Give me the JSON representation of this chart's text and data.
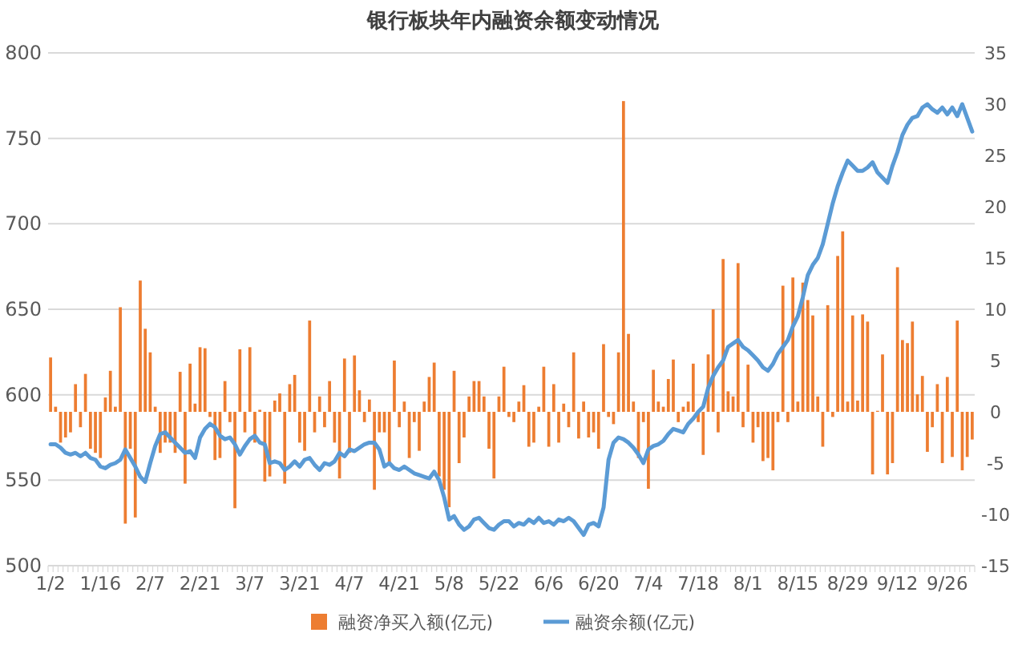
{
  "chart_data": {
    "type": "bar",
    "title": "银行板块年内融资余额变动情况",
    "categories": [
      "1/2",
      null,
      null,
      null,
      null,
      null,
      null,
      null,
      null,
      null,
      "1/16",
      null,
      null,
      null,
      null,
      null,
      null,
      null,
      null,
      null,
      "2/7",
      null,
      null,
      null,
      null,
      null,
      null,
      null,
      null,
      null,
      "2/21",
      null,
      null,
      null,
      null,
      null,
      null,
      null,
      null,
      null,
      "3/7",
      null,
      null,
      null,
      null,
      null,
      null,
      null,
      null,
      null,
      "3/21",
      null,
      null,
      null,
      null,
      null,
      null,
      null,
      null,
      null,
      "4/7",
      null,
      null,
      null,
      null,
      null,
      null,
      null,
      null,
      null,
      "4/21",
      null,
      null,
      null,
      null,
      null,
      null,
      null,
      null,
      null,
      "5/8",
      null,
      null,
      null,
      null,
      null,
      null,
      null,
      null,
      null,
      "5/22",
      null,
      null,
      null,
      null,
      null,
      null,
      null,
      null,
      null,
      "6/6",
      null,
      null,
      null,
      null,
      null,
      null,
      null,
      null,
      null,
      "6/20",
      null,
      null,
      null,
      null,
      null,
      null,
      null,
      null,
      null,
      "7/4",
      null,
      null,
      null,
      null,
      null,
      null,
      null,
      null,
      null,
      "7/18",
      null,
      null,
      null,
      null,
      null,
      null,
      null,
      null,
      null,
      "8/1",
      null,
      null,
      null,
      null,
      null,
      null,
      null,
      null,
      null,
      "8/15",
      null,
      null,
      null,
      null,
      null,
      null,
      null,
      null,
      null,
      "8/29",
      null,
      null,
      null,
      null,
      null,
      null,
      null,
      null,
      null,
      "9/12",
      null,
      null,
      null,
      null,
      null,
      null,
      null,
      null,
      null,
      "9/26",
      null,
      null,
      null,
      null,
      null
    ],
    "series": [
      {
        "name": "融资净买入额(亿元)",
        "axis": "y2",
        "color": "#ed7d31",
        "values": [
          5.3,
          0.5,
          -3,
          -2.5,
          -2,
          2.7,
          -1.5,
          3.7,
          -3.6,
          -4,
          -4.5,
          1.4,
          4,
          0.5,
          10.2,
          -10.9,
          -3.6,
          -10.3,
          12.8,
          8.1,
          5.8,
          0.5,
          -4,
          -3,
          -3,
          -4,
          3.9,
          -7,
          4.7,
          0.8,
          6.3,
          6.2,
          -0.5,
          -4.7,
          -4.5,
          3,
          -1,
          -9.4,
          6.1,
          -2,
          6.3,
          -3,
          0.2,
          -6.8,
          -6.3,
          1.1,
          1.8,
          -7,
          2.7,
          3.6,
          -3,
          -3.8,
          8.9,
          -2,
          1.5,
          -1.5,
          3,
          -3,
          -6.5,
          5.2,
          -4,
          5.5,
          2.1,
          -1,
          1.2,
          -7.6,
          -2,
          -2,
          -5,
          5,
          -1.5,
          1,
          -4.5,
          -1,
          -3.8,
          1,
          3.4,
          4.8,
          -6.3,
          -7.6,
          -9.3,
          4,
          -5,
          -2.5,
          1.5,
          3,
          3,
          1.5,
          -3.6,
          -6.5,
          1.5,
          4.4,
          -0.5,
          -1,
          1,
          2.6,
          -3.4,
          -3,
          0.5,
          4.4,
          -3.4,
          2.7,
          -3,
          0.8,
          -1.5,
          5.8,
          -2.6,
          1,
          -2.5,
          -2,
          -3.6,
          6.6,
          -0.5,
          -1.2,
          5.8,
          30.3,
          7.6,
          1,
          -4.5,
          -1,
          -7.5,
          4.1,
          1,
          0.5,
          3.2,
          5.1,
          -1,
          0.5,
          1,
          4.7,
          -1,
          -4.2,
          5.6,
          10,
          -2,
          14.9,
          2,
          1.5,
          14.5,
          -1.5,
          4.6,
          -3,
          -1.5,
          -4.8,
          -4.5,
          -5.7,
          -1,
          12.3,
          -1,
          13.1,
          1,
          12.6,
          10.9,
          9.4,
          1.5,
          -3.4,
          10.4,
          -0.5,
          15.2,
          17.6,
          1,
          9.4,
          1.1,
          9.5,
          8.8,
          -6.1,
          0.1,
          5.6,
          -6.1,
          -5,
          14.1,
          7,
          6.7,
          8.8,
          1.7,
          3.5,
          -3.9,
          -1.5,
          2.7,
          -5,
          3.4,
          -4.4,
          8.9,
          -5.7,
          -4.4,
          -2.7
        ]
      },
      {
        "name": "融资余额(亿元)",
        "type": "line",
        "color": "#5b9bd5",
        "values": [
          571,
          571,
          569,
          566,
          565,
          566,
          564,
          566,
          563,
          562,
          558,
          557,
          559,
          560,
          562,
          568,
          563,
          558,
          552,
          549,
          560,
          570,
          577,
          578,
          575,
          572,
          569,
          566,
          567,
          563,
          575,
          580,
          583,
          581,
          576,
          574,
          575,
          571,
          565,
          570,
          574,
          576,
          572,
          571,
          560,
          561,
          560,
          556,
          558,
          561,
          558,
          562,
          563,
          559,
          556,
          560,
          559,
          561,
          566,
          564,
          568,
          567,
          569,
          571,
          572,
          572,
          568,
          558,
          560,
          557,
          556,
          558,
          556,
          554,
          553,
          552,
          551,
          555,
          550,
          540,
          527,
          529,
          524,
          521,
          523,
          527,
          528,
          525,
          522,
          521,
          524,
          526,
          526,
          523,
          525,
          524,
          527,
          525,
          528,
          525,
          526,
          524,
          527,
          526,
          528,
          526,
          522,
          518,
          524,
          525,
          523,
          534,
          562,
          572,
          575,
          574,
          572,
          569,
          565,
          560,
          568,
          570,
          571,
          573,
          577,
          580,
          579,
          578,
          583,
          586,
          590,
          593,
          604,
          611,
          616,
          620,
          628,
          630,
          632,
          628,
          626,
          623,
          620,
          616,
          614,
          618,
          624,
          628,
          632,
          640,
          646,
          657,
          670,
          676,
          680,
          688,
          700,
          712,
          722,
          730,
          737,
          734,
          731,
          731,
          733,
          736,
          730,
          727,
          724,
          734,
          742,
          752,
          758,
          762,
          763,
          768,
          770,
          767,
          765,
          768,
          764,
          768,
          763,
          770,
          762,
          754
        ]
      }
    ],
    "ylim": [
      500,
      800
    ],
    "yticks": [
      500,
      550,
      600,
      650,
      700,
      750,
      800
    ],
    "y2lim": [
      -15,
      35
    ],
    "y2ticks": [
      -15,
      -10,
      -5,
      0,
      5,
      10,
      15,
      20,
      25,
      30,
      35
    ],
    "grid": true,
    "legend": "bottom"
  }
}
